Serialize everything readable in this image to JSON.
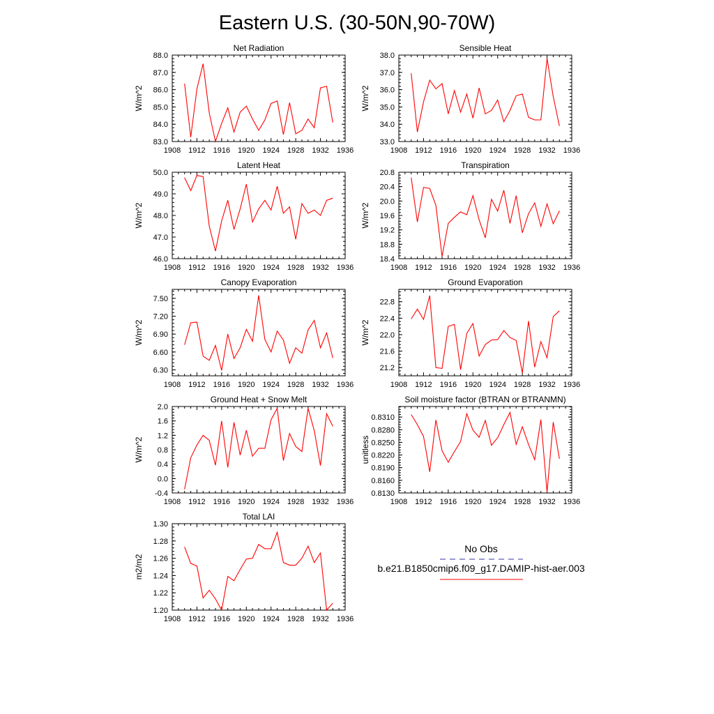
{
  "figure_title": "Eastern U.S. (30-50N,90-70W)",
  "legend": {
    "entries": [
      {
        "label": "No Obs",
        "color": "#3333aa",
        "style": "dashed"
      },
      {
        "label": "b.e21.B1850cmip6.f09_g17.DAMIP-hist-aer.003",
        "color": "#ff0000",
        "style": "solid"
      }
    ]
  },
  "chart_data": [
    {
      "type": "line",
      "title": "Net Radiation",
      "ylabel": "W/m^2",
      "xlim": [
        1908,
        1936
      ],
      "ylim": [
        83.0,
        88.0
      ],
      "xticks": [
        "1908",
        "1912",
        "1916",
        "1920",
        "1924",
        "1928",
        "1932",
        "1936"
      ],
      "yticks": [
        "83.0",
        "84.0",
        "85.0",
        "86.0",
        "87.0",
        "88.0"
      ],
      "x": [
        1910,
        1911,
        1912,
        1913,
        1914,
        1915,
        1916,
        1917,
        1918,
        1919,
        1920,
        1921,
        1922,
        1923,
        1924,
        1925,
        1926,
        1927,
        1928,
        1929,
        1930,
        1931,
        1932,
        1933,
        1934
      ],
      "series": [
        {
          "color": "#ff0000",
          "values": [
            86.35,
            83.25,
            86.05,
            87.5,
            84.65,
            83.0,
            84.05,
            84.95,
            83.55,
            84.7,
            85.05,
            84.3,
            83.65,
            84.25,
            85.2,
            85.35,
            83.4,
            85.25,
            83.45,
            83.65,
            84.3,
            83.8,
            86.1,
            86.2,
            84.1
          ]
        }
      ]
    },
    {
      "type": "line",
      "title": "Sensible Heat",
      "ylabel": "W/m^2",
      "xlim": [
        1908,
        1936
      ],
      "ylim": [
        33.0,
        38.0
      ],
      "xticks": [
        "1908",
        "1912",
        "1916",
        "1920",
        "1924",
        "1928",
        "1932",
        "1936"
      ],
      "yticks": [
        "33.0",
        "34.0",
        "35.0",
        "36.0",
        "37.0",
        "38.0"
      ],
      "x": [
        1910,
        1911,
        1912,
        1913,
        1914,
        1915,
        1916,
        1917,
        1918,
        1919,
        1920,
        1921,
        1922,
        1923,
        1924,
        1925,
        1926,
        1927,
        1928,
        1929,
        1930,
        1931,
        1932,
        1933,
        1934
      ],
      "series": [
        {
          "color": "#ff0000",
          "values": [
            36.95,
            33.55,
            35.3,
            36.55,
            36.05,
            36.35,
            34.6,
            35.95,
            34.7,
            35.75,
            34.35,
            36.1,
            34.6,
            34.8,
            35.4,
            34.15,
            34.8,
            35.65,
            35.75,
            34.4,
            34.25,
            34.25,
            37.8,
            35.6,
            33.9
          ]
        }
      ]
    },
    {
      "type": "line",
      "title": "Latent Heat",
      "ylabel": "W/m^2",
      "xlim": [
        1908,
        1936
      ],
      "ylim": [
        46.0,
        50.0
      ],
      "xticks": [
        "1908",
        "1912",
        "1916",
        "1920",
        "1924",
        "1928",
        "1932",
        "1936"
      ],
      "yticks": [
        "46.0",
        "47.0",
        "48.0",
        "49.0",
        "50.0"
      ],
      "x": [
        1910,
        1911,
        1912,
        1913,
        1914,
        1915,
        1916,
        1917,
        1918,
        1919,
        1920,
        1921,
        1922,
        1923,
        1924,
        1925,
        1926,
        1927,
        1928,
        1929,
        1930,
        1931,
        1932,
        1933,
        1934
      ],
      "series": [
        {
          "color": "#ff0000",
          "values": [
            49.75,
            49.15,
            49.85,
            49.8,
            47.5,
            46.35,
            47.75,
            48.7,
            47.35,
            48.3,
            49.45,
            47.7,
            48.3,
            48.7,
            48.25,
            49.35,
            48.1,
            48.4,
            46.9,
            48.55,
            48.1,
            48.25,
            48.0,
            48.7,
            48.8
          ]
        }
      ]
    },
    {
      "type": "line",
      "title": "Transpiration",
      "ylabel": "W/m^2",
      "xlim": [
        1908,
        1936
      ],
      "ylim": [
        18.4,
        20.8
      ],
      "xticks": [
        "1908",
        "1912",
        "1916",
        "1920",
        "1924",
        "1928",
        "1932",
        "1936"
      ],
      "yticks": [
        "18.4",
        "18.8",
        "19.2",
        "19.6",
        "20.0",
        "20.4",
        "20.8"
      ],
      "x": [
        1910,
        1911,
        1912,
        1913,
        1914,
        1915,
        1916,
        1917,
        1918,
        1919,
        1920,
        1921,
        1922,
        1923,
        1924,
        1925,
        1926,
        1927,
        1928,
        1929,
        1930,
        1931,
        1932,
        1933,
        1934
      ],
      "series": [
        {
          "color": "#ff0000",
          "values": [
            20.65,
            19.42,
            20.38,
            20.35,
            19.88,
            18.46,
            19.38,
            19.55,
            19.7,
            19.62,
            20.15,
            19.48,
            18.98,
            20.05,
            19.72,
            20.3,
            19.38,
            20.15,
            19.12,
            19.65,
            19.95,
            19.3,
            19.92,
            19.37,
            19.73
          ]
        }
      ]
    },
    {
      "type": "line",
      "title": "Canopy Evaporation",
      "ylabel": "W/m^2",
      "xlim": [
        1908,
        1936
      ],
      "ylim": [
        6.2,
        7.65
      ],
      "xticks": [
        "1908",
        "1912",
        "1916",
        "1920",
        "1924",
        "1928",
        "1932",
        "1936"
      ],
      "yticks": [
        "6.30",
        "6.60",
        "6.90",
        "7.20",
        "7.50"
      ],
      "x": [
        1910,
        1911,
        1912,
        1913,
        1914,
        1915,
        1916,
        1917,
        1918,
        1919,
        1920,
        1921,
        1922,
        1923,
        1924,
        1925,
        1926,
        1927,
        1928,
        1929,
        1930,
        1931,
        1932,
        1933,
        1934
      ],
      "series": [
        {
          "color": "#ff0000",
          "values": [
            6.72,
            7.09,
            7.1,
            6.53,
            6.46,
            6.71,
            6.29,
            6.9,
            6.49,
            6.67,
            6.98,
            6.78,
            7.55,
            6.81,
            6.6,
            6.95,
            6.8,
            6.41,
            6.67,
            6.58,
            6.97,
            7.13,
            6.67,
            6.92,
            6.5
          ]
        }
      ]
    },
    {
      "type": "line",
      "title": "Ground Evaporation",
      "ylabel": "W/m^2",
      "xlim": [
        1908,
        1936
      ],
      "ylim": [
        21.0,
        23.1
      ],
      "xticks": [
        "1908",
        "1912",
        "1916",
        "1920",
        "1924",
        "1928",
        "1932",
        "1936"
      ],
      "yticks": [
        "21.2",
        "21.6",
        "22.0",
        "22.4",
        "22.8"
      ],
      "x": [
        1910,
        1911,
        1912,
        1913,
        1914,
        1915,
        1916,
        1917,
        1918,
        1919,
        1920,
        1921,
        1922,
        1923,
        1924,
        1925,
        1926,
        1927,
        1928,
        1929,
        1930,
        1931,
        1932,
        1933,
        1934
      ],
      "series": [
        {
          "color": "#ff0000",
          "values": [
            22.38,
            22.62,
            22.37,
            22.95,
            21.2,
            21.18,
            22.2,
            22.25,
            21.15,
            22.03,
            22.27,
            21.48,
            21.76,
            21.87,
            21.88,
            22.1,
            21.93,
            21.86,
            21.07,
            22.33,
            21.21,
            21.83,
            21.44,
            22.44,
            22.58
          ]
        }
      ]
    },
    {
      "type": "line",
      "title": "Ground Heat + Snow Melt",
      "ylabel": "W/m^2",
      "xlim": [
        1908,
        1936
      ],
      "ylim": [
        -0.4,
        2.0
      ],
      "xticks": [
        "1908",
        "1912",
        "1916",
        "1920",
        "1924",
        "1928",
        "1932",
        "1936"
      ],
      "yticks": [
        "-0.4",
        "0.0",
        "0.4",
        "0.8",
        "1.2",
        "1.6",
        "2.0"
      ],
      "x": [
        1910,
        1911,
        1912,
        1913,
        1914,
        1915,
        1916,
        1917,
        1918,
        1919,
        1920,
        1921,
        1922,
        1923,
        1924,
        1925,
        1926,
        1927,
        1928,
        1929,
        1930,
        1931,
        1932,
        1933,
        1934
      ],
      "series": [
        {
          "color": "#ff0000",
          "values": [
            -0.3,
            0.58,
            0.93,
            1.2,
            1.06,
            0.37,
            1.6,
            0.31,
            1.56,
            0.65,
            1.34,
            0.62,
            0.84,
            0.84,
            1.63,
            1.95,
            0.5,
            1.25,
            0.89,
            0.75,
            1.95,
            1.33,
            0.36,
            1.8,
            1.45
          ]
        }
      ]
    },
    {
      "type": "line",
      "title": "Soil moisture factor (BTRAN or BTRANMN)",
      "ylabel": "unitless",
      "xlim": [
        1908,
        1936
      ],
      "ylim": [
        0.813,
        0.8335
      ],
      "xticks": [
        "1908",
        "1912",
        "1916",
        "1920",
        "1924",
        "1928",
        "1932",
        "1936"
      ],
      "yticks": [
        "0.8130",
        "0.8160",
        "0.8190",
        "0.8220",
        "0.8250",
        "0.8280",
        "0.8310"
      ],
      "x": [
        1910,
        1911,
        1912,
        1913,
        1914,
        1915,
        1916,
        1917,
        1918,
        1919,
        1920,
        1921,
        1922,
        1923,
        1924,
        1925,
        1926,
        1927,
        1928,
        1929,
        1930,
        1931,
        1932,
        1933,
        1934
      ],
      "series": [
        {
          "color": "#ff0000",
          "values": [
            0.8316,
            0.8292,
            0.8264,
            0.818,
            0.8303,
            0.823,
            0.8203,
            0.8228,
            0.8252,
            0.8318,
            0.8279,
            0.8262,
            0.8302,
            0.8243,
            0.8261,
            0.8292,
            0.8321,
            0.8245,
            0.8287,
            0.8245,
            0.8209,
            0.8304,
            0.8132,
            0.8298,
            0.8211
          ]
        }
      ]
    },
    {
      "type": "line",
      "title": "Total LAI",
      "ylabel": "m2/m2",
      "xlim": [
        1908,
        1936
      ],
      "ylim": [
        1.2,
        1.3
      ],
      "xticks": [
        "1908",
        "1912",
        "1916",
        "1920",
        "1924",
        "1928",
        "1932",
        "1936"
      ],
      "yticks": [
        "1.20",
        "1.22",
        "1.24",
        "1.26",
        "1.28",
        "1.30"
      ],
      "x": [
        1910,
        1911,
        1912,
        1913,
        1914,
        1915,
        1916,
        1917,
        1918,
        1919,
        1920,
        1921,
        1922,
        1923,
        1924,
        1925,
        1926,
        1927,
        1928,
        1929,
        1930,
        1931,
        1932,
        1933,
        1934
      ],
      "series": [
        {
          "color": "#ff0000",
          "values": [
            1.273,
            1.254,
            1.251,
            1.214,
            1.223,
            1.213,
            1.2,
            1.239,
            1.234,
            1.247,
            1.259,
            1.26,
            1.276,
            1.271,
            1.271,
            1.29,
            1.255,
            1.252,
            1.252,
            1.26,
            1.274,
            1.255,
            1.266,
            1.2,
            1.208
          ]
        }
      ]
    }
  ]
}
